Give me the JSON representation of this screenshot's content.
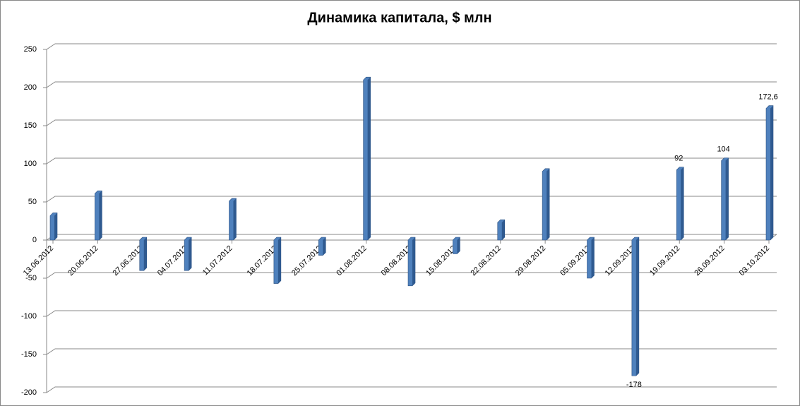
{
  "chart_data": {
    "type": "bar",
    "title": "Динамика капитала, $ млн",
    "categories": [
      "13.06.2012",
      "20.06.2012",
      "27.06.2012",
      "04.07.2012",
      "11.07.2012",
      "18.07.2012",
      "25.07.2012",
      "01.08.2012",
      "08.08.2012",
      "15.08.2012",
      "22.08.2012",
      "29.08.2012",
      "05.09.2012",
      "12.09.2012",
      "19.09.2012",
      "26.09.2012",
      "03.10.2012"
    ],
    "values": [
      32,
      61,
      -40,
      -40,
      51,
      -57,
      -20,
      210,
      -60,
      -18,
      23,
      90,
      -50,
      -178,
      92,
      104,
      172.6
    ],
    "value_labels": [
      null,
      null,
      null,
      null,
      null,
      null,
      null,
      null,
      null,
      null,
      null,
      null,
      null,
      "-178",
      "92",
      "104",
      "172,6"
    ],
    "color": "#4f81bd",
    "ylim": [
      -200,
      250
    ],
    "yticks": [
      -200,
      -150,
      -100,
      -50,
      0,
      50,
      100,
      150,
      200,
      250
    ],
    "grid": true
  }
}
